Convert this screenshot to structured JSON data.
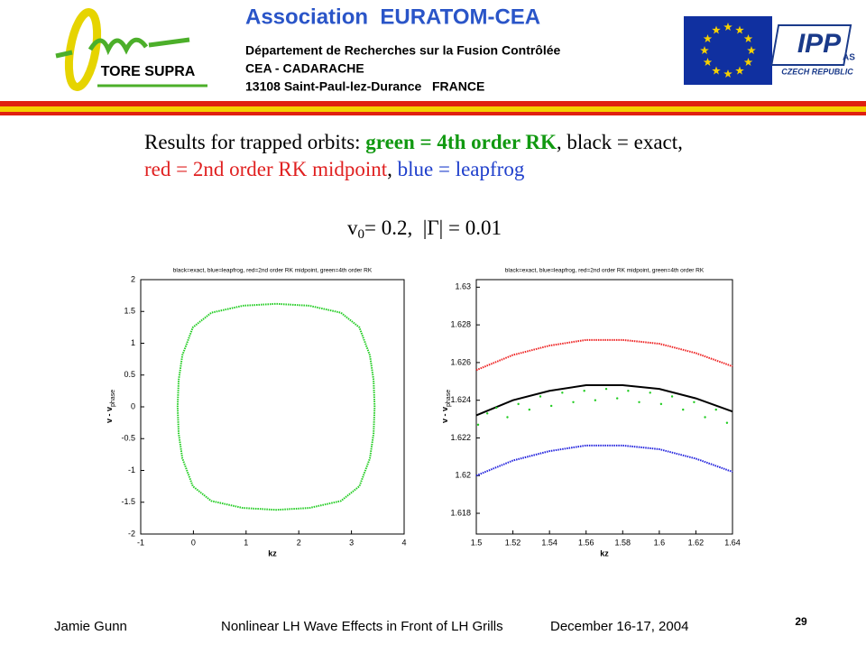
{
  "header": {
    "logo_text": "TORE SUPRA",
    "org": "Association  EURATOM-CEA",
    "dept": "Département de Recherches sur la Fusion Contrôlée",
    "site": "CEA - CADARACHE",
    "address": "13108 Saint-Paul-lez-Durance   FRANCE",
    "ipp": "IPP",
    "ipp_sub": "AS",
    "ipp_country": "CZECH REPUBLIC"
  },
  "slide_title": {
    "line1": [
      "Results for trapped orbits: ",
      "green = 4th order RK",
      ", black = exact,"
    ],
    "line2": [
      "red = 2nd order RK midpoint",
      ", ",
      "blue = leapfrog"
    ],
    "params": [
      "v",
      "0",
      "= 0.2,  |Γ| = 0.01"
    ]
  },
  "chart_data": [
    {
      "type": "line",
      "title": "black=exact, blue=leapfrog, red=2nd order RK midpoint, green=4th order RK",
      "xlabel": "kz",
      "ylabel": "v - v",
      "ylabel_sub": "phase",
      "xlim": [
        -1,
        4
      ],
      "ylim": [
        -2,
        2
      ],
      "xticks": [
        -1,
        0,
        1,
        2,
        3,
        4
      ],
      "yticks": [
        -2,
        -1.5,
        -1,
        -0.5,
        0,
        0.5,
        1,
        1.5,
        2
      ],
      "series": [
        {
          "color": "#22cc22",
          "style": "line",
          "x": [
            3.44,
            3.42,
            3.35,
            3.15,
            2.8,
            2.2,
            1.57,
            0.94,
            0.34,
            -0.01,
            -0.21,
            -0.28,
            -0.3,
            -0.28,
            -0.21,
            -0.01,
            0.34,
            0.94,
            1.57,
            2.2,
            2.8,
            3.15,
            3.35,
            3.42,
            3.44
          ],
          "values": [
            0,
            0.42,
            0.81,
            1.25,
            1.48,
            1.59,
            1.62,
            1.59,
            1.48,
            1.25,
            0.81,
            0.42,
            0,
            -0.42,
            -0.81,
            -1.25,
            -1.48,
            -1.59,
            -1.62,
            -1.59,
            -1.48,
            -1.25,
            -0.81,
            -0.42,
            0
          ]
        }
      ]
    },
    {
      "type": "line",
      "title": "black=exact, blue=leapfrog, red=2nd order RK midpoint, green=4th order RK",
      "xlabel": "kz",
      "ylabel": "v - v",
      "ylabel_sub": "phase",
      "xlim": [
        1.5,
        1.64
      ],
      "ylim": [
        1.6169,
        1.6304
      ],
      "xticks": [
        1.5,
        1.52,
        1.54,
        1.56,
        1.58,
        1.6,
        1.62,
        1.64
      ],
      "yticks": [
        1.618,
        1.62,
        1.622,
        1.624,
        1.626,
        1.628,
        1.63
      ],
      "series": [
        {
          "color": "#ee2222",
          "style": "line",
          "x": [
            1.5,
            1.52,
            1.54,
            1.56,
            1.58,
            1.6,
            1.62,
            1.64
          ],
          "values": [
            1.6256,
            1.6264,
            1.6269,
            1.6272,
            1.6272,
            1.627,
            1.6265,
            1.6258
          ]
        },
        {
          "color": "#000000",
          "style": "line",
          "x": [
            1.5,
            1.52,
            1.54,
            1.56,
            1.58,
            1.6,
            1.62,
            1.64
          ],
          "values": [
            1.6232,
            1.624,
            1.6245,
            1.6248,
            1.6248,
            1.6246,
            1.6241,
            1.6234
          ]
        },
        {
          "color": "#2222dd",
          "style": "line",
          "x": [
            1.5,
            1.52,
            1.54,
            1.56,
            1.58,
            1.6,
            1.62,
            1.64
          ],
          "values": [
            1.62,
            1.6208,
            1.6213,
            1.6216,
            1.6216,
            1.6214,
            1.6209,
            1.6202
          ]
        },
        {
          "color": "#22cc22",
          "style": "dots",
          "x": [
            1.501,
            1.506,
            1.511,
            1.517,
            1.523,
            1.529,
            1.535,
            1.541,
            1.547,
            1.553,
            1.559,
            1.565,
            1.571,
            1.577,
            1.583,
            1.589,
            1.595,
            1.601,
            1.607,
            1.613,
            1.619,
            1.625,
            1.631,
            1.637
          ],
          "values": [
            1.6227,
            1.6233,
            1.6236,
            1.6231,
            1.6238,
            1.6235,
            1.6242,
            1.6237,
            1.6244,
            1.6239,
            1.6245,
            1.624,
            1.6246,
            1.6241,
            1.6245,
            1.6239,
            1.6244,
            1.6238,
            1.6242,
            1.6235,
            1.6239,
            1.6231,
            1.6235,
            1.6228
          ]
        }
      ]
    }
  ],
  "footer": {
    "author": "Jamie Gunn",
    "talk": "Nonlinear LH Wave Effects in Front of LH Grills",
    "date": "December 16-17, 2004",
    "page": "29"
  }
}
